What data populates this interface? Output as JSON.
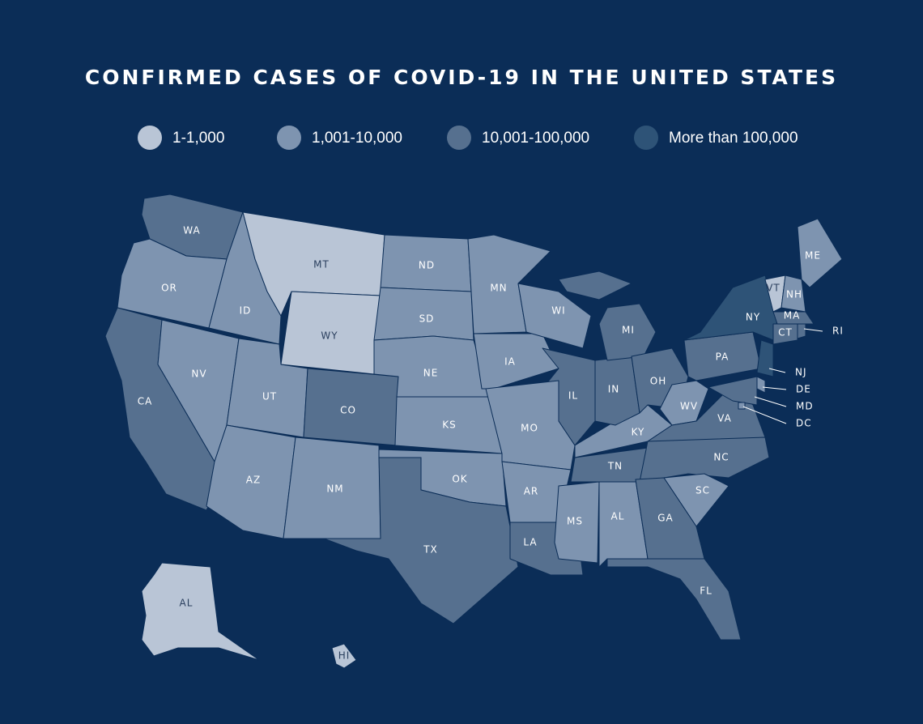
{
  "title": "CONFIRMED CASES OF COVID-19 IN THE UNITED STATES",
  "legend": [
    {
      "label": "1-1,000",
      "color": "#b9c5d6"
    },
    {
      "label": "1,001-10,000",
      "color": "#7e94b0"
    },
    {
      "label": "10,001-100,000",
      "color": "#56708f"
    },
    {
      "label": "More than 100,000",
      "color": "#2e5377"
    }
  ],
  "states": [
    {
      "label": "WA",
      "category": 2
    },
    {
      "label": "OR",
      "category": 1
    },
    {
      "label": "CA",
      "category": 2
    },
    {
      "label": "NV",
      "category": 1
    },
    {
      "label": "ID",
      "category": 1
    },
    {
      "label": "MT",
      "category": 0
    },
    {
      "label": "WY",
      "category": 0
    },
    {
      "label": "UT",
      "category": 1
    },
    {
      "label": "CO",
      "category": 2
    },
    {
      "label": "AZ",
      "category": 1
    },
    {
      "label": "NM",
      "category": 1
    },
    {
      "label": "ND",
      "category": 1
    },
    {
      "label": "SD",
      "category": 1
    },
    {
      "label": "NE",
      "category": 1
    },
    {
      "label": "KS",
      "category": 1
    },
    {
      "label": "OK",
      "category": 1
    },
    {
      "label": "TX",
      "category": 2
    },
    {
      "label": "MN",
      "category": 1
    },
    {
      "label": "IA",
      "category": 1
    },
    {
      "label": "WI",
      "category": 1
    },
    {
      "label": "IL",
      "category": 2
    },
    {
      "label": "MO",
      "category": 1
    },
    {
      "label": "AR",
      "category": 1
    },
    {
      "label": "LA",
      "category": 2
    },
    {
      "label": "MS",
      "category": 1
    },
    {
      "label": "AL",
      "category": 1
    },
    {
      "label": "TN",
      "category": 2
    },
    {
      "label": "KY",
      "category": 1
    },
    {
      "label": "IN",
      "category": 2
    },
    {
      "label": "MI",
      "category": 2
    },
    {
      "label": "OH",
      "category": 2
    },
    {
      "label": "PA",
      "category": 2
    },
    {
      "label": "WV",
      "category": 1
    },
    {
      "label": "VA",
      "category": 2
    },
    {
      "label": "NC",
      "category": 2
    },
    {
      "label": "SC",
      "category": 1
    },
    {
      "label": "GA",
      "category": 2
    },
    {
      "label": "FL",
      "category": 2
    },
    {
      "label": "NY",
      "category": 3
    },
    {
      "label": "NJ",
      "category": 3
    },
    {
      "label": "DE",
      "category": 1
    },
    {
      "label": "MD",
      "category": 2
    },
    {
      "label": "DC",
      "category": 1
    },
    {
      "label": "VT",
      "category": 0
    },
    {
      "label": "NH",
      "category": 1
    },
    {
      "label": "ME",
      "category": 1
    },
    {
      "label": "MA",
      "category": 2
    },
    {
      "label": "CT",
      "category": 2
    },
    {
      "label": "RI",
      "category": 2
    },
    {
      "label": "AL",
      "category": 0
    },
    {
      "label": "HI",
      "category": 0
    }
  ]
}
